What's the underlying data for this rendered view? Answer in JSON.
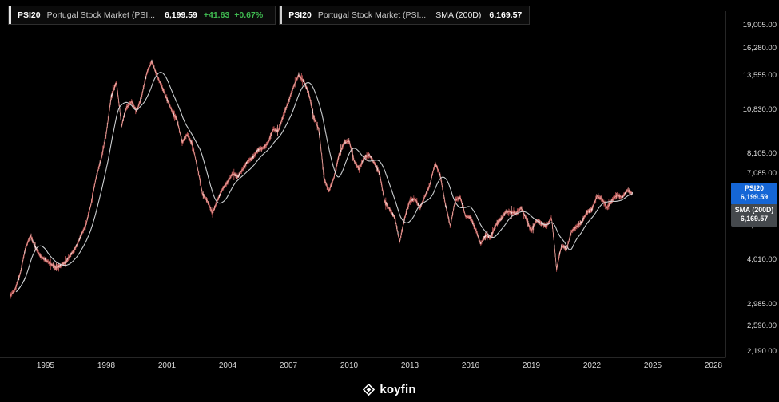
{
  "legend": {
    "primary": {
      "symbol": "PSI20",
      "name": "Portugal Stock Market (PSI...",
      "price": "6,199.59",
      "change": "+41.63",
      "change_pct": "+0.67%"
    },
    "overlay": {
      "symbol": "PSI20",
      "name": "Portugal Stock Market (PSI...",
      "indicator": "SMA (200D)",
      "value": "6,169.57"
    }
  },
  "badges": {
    "price": {
      "label": "PSI20",
      "value": "6,199.59"
    },
    "sma": {
      "label": "SMA (200D)",
      "value": "6,169.57"
    }
  },
  "axes": {
    "y_ticks": [
      "19,005.00",
      "16,280.00",
      "13,555.00",
      "10,830.00",
      "8,105.00",
      "7,085.00",
      "5,035.00",
      "4,010.00",
      "2,985.00",
      "2,590.00",
      "2,190.00"
    ],
    "y_values": [
      19005,
      16280,
      13555,
      10830,
      8105,
      7085,
      5035,
      4010,
      2985,
      2590,
      2190
    ],
    "x_ticks": [
      "1995",
      "1998",
      "2001",
      "2004",
      "2007",
      "2010",
      "2013",
      "2016",
      "2019",
      "2022",
      "2025",
      "2028"
    ]
  },
  "colors": {
    "background": "#000000",
    "badge_price": "#1566d6",
    "badge_sma": "#45494d",
    "up_green": "#3fb950",
    "series_red": "#cd5a5a",
    "series_pink": "#ef9d98",
    "series_white": "#f3f3f3",
    "sma_line": "#d5d8da",
    "axis_line": "#262626"
  },
  "footer": {
    "logo_text": "koyfin"
  },
  "chart_data": {
    "type": "line",
    "title": "PSI20 Portugal Stock Market with SMA (200D)",
    "y_scale": "log",
    "x_range": [
      1993.1,
      2028.6
    ],
    "y_axis_anchors": {
      "value_top": 19005,
      "value_bottom": 2190
    },
    "x_encoding": {
      "start": 1993.25,
      "step": 0.25,
      "unit": "year"
    },
    "last_price": 6199.59,
    "series": [
      {
        "name": "PSI20",
        "values": [
          3150,
          3300,
          3650,
          4300,
          4700,
          4350,
          4100,
          4000,
          3900,
          3800,
          3850,
          3950,
          4150,
          4350,
          4700,
          5050,
          5800,
          6900,
          7800,
          9200,
          11800,
          13000,
          9700,
          11000,
          11400,
          10700,
          11800,
          13800,
          14900,
          13600,
          12600,
          11600,
          10700,
          10100,
          8700,
          9200,
          8600,
          7400,
          6200,
          5900,
          5450,
          5950,
          6400,
          6700,
          7100,
          6950,
          7300,
          7700,
          7900,
          8300,
          8400,
          8700,
          9500,
          9400,
          10400,
          11400,
          12600,
          13600,
          13100,
          12100,
          10300,
          9500,
          6900,
          6300,
          6900,
          8000,
          8700,
          8800,
          7700,
          7300,
          7900,
          8000,
          7600,
          7100,
          5900,
          5600,
          5300,
          4500,
          5300,
          5900,
          6000,
          5650,
          6100,
          6600,
          7600,
          7000,
          5800,
          5000,
          5950,
          6050,
          5350,
          5300,
          4900,
          4450,
          4700,
          4650,
          5050,
          5250,
          5500,
          5500,
          5450,
          5650,
          5250,
          4850,
          5200,
          5100,
          5000,
          5300,
          3750,
          4400,
          4300,
          4850,
          5000,
          5150,
          5500,
          5600,
          6100,
          6000,
          5650,
          5950,
          6150,
          6050,
          6350,
          6200
        ]
      },
      {
        "name": "SMA (200D)",
        "derived_from": "PSI20",
        "window_days": 200,
        "last_value": 6169.57
      }
    ]
  }
}
